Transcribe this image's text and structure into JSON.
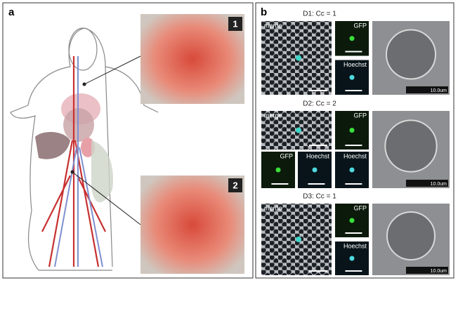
{
  "panel_a": {
    "label": "a",
    "insets": [
      {
        "number": "1"
      },
      {
        "number": "2"
      }
    ]
  },
  "panel_b": {
    "label": "b",
    "rows": [
      {
        "title": "D1: Cc = 1",
        "merge": "merge",
        "gfp": "GFP",
        "hoechst": "Hoechst",
        "scale": "10.0um"
      },
      {
        "title": "D2: Cc = 2",
        "merge": "merge",
        "gfp": "GFP",
        "hoechst": "Hoechst",
        "scale": "10.0um",
        "crop_gfp": "GFP",
        "crop_hoechst": "Hoechst"
      },
      {
        "title": "D3: Cc = 1",
        "merge": "merge",
        "gfp": "GFP",
        "hoechst": "Hoechst",
        "scale": "10.0um"
      }
    ]
  }
}
